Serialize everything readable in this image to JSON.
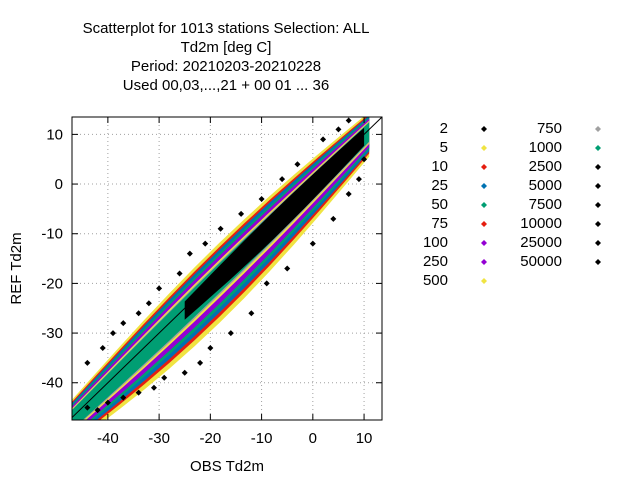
{
  "chart_data": {
    "type": "scatter",
    "title_lines": [
      "Scatterplot for 1013 stations Selection: ALL",
      "Td2m [deg C]",
      "Period: 20210203-20210228",
      "Used  00,03,...,21  + 00 01 ... 36"
    ],
    "xlabel": "OBS Td2m",
    "ylabel": "REF Td2m",
    "xlim": [
      -47,
      13.5
    ],
    "ylim": [
      -47.5,
      13.5
    ],
    "x_ticks": [
      -40,
      -30,
      -20,
      -10,
      0,
      10
    ],
    "y_ticks": [
      -40,
      -30,
      -20,
      -10,
      0,
      10
    ],
    "x_tick_labels": [
      "-40",
      "-30",
      "-20",
      "-10",
      "0",
      "10"
    ],
    "y_tick_labels": [
      "-40",
      "-30",
      "-20",
      "-10",
      "0",
      "10"
    ],
    "grid": true,
    "diagonal": true,
    "legend_position": "right",
    "legend": [
      {
        "label": "2",
        "color": "#000000"
      },
      {
        "label": "5",
        "color": "#f0e442"
      },
      {
        "label": "10",
        "color": "#e51e10"
      },
      {
        "label": "25",
        "color": "#0072b2"
      },
      {
        "label": "50",
        "color": "#009e73"
      },
      {
        "label": "75",
        "color": "#e51e10"
      },
      {
        "label": "100",
        "color": "#9400d3"
      },
      {
        "label": "250",
        "color": "#9400d3"
      },
      {
        "label": "500",
        "color": "#f0e442"
      },
      {
        "label": "750",
        "color": "#a0a0a0"
      },
      {
        "label": "1000",
        "color": "#009e73"
      },
      {
        "label": "2500",
        "color": "#000000"
      },
      {
        "label": "5000",
        "color": "#000000"
      },
      {
        "label": "7500",
        "color": "#000000"
      },
      {
        "label": "10000",
        "color": "#000000"
      },
      {
        "label": "25000",
        "color": "#000000"
      },
      {
        "label": "50000",
        "color": "#000000"
      }
    ],
    "density_bands": [
      {
        "color": "#f0e442",
        "halfwidth": 6.2
      },
      {
        "color": "#e51e10",
        "halfwidth": 5.3
      },
      {
        "color": "#0072b2",
        "halfwidth": 4.7
      },
      {
        "color": "#009e73",
        "halfwidth": 4.0
      },
      {
        "color": "#9400d3",
        "halfwidth": 3.4
      },
      {
        "color": "#f0e442",
        "halfwidth": 2.5
      },
      {
        "color": "#a0a0a0",
        "halfwidth": 2.1
      },
      {
        "color": "#009e73",
        "halfwidth": 1.8
      },
      {
        "color": "#000000",
        "halfwidth": 1.6
      }
    ],
    "core_region": {
      "x_from": -25,
      "x_to": 10
    },
    "outliers": [
      [
        -44,
        -36
      ],
      [
        -41,
        -33
      ],
      [
        -39,
        -30
      ],
      [
        -37,
        -28
      ],
      [
        -34,
        -26
      ],
      [
        -32,
        -24
      ],
      [
        -30,
        -21
      ],
      [
        -26,
        -18
      ],
      [
        -24,
        -14
      ],
      [
        -21,
        -12
      ],
      [
        -18,
        -9
      ],
      [
        -14,
        -6
      ],
      [
        -10,
        -3
      ],
      [
        -6,
        1
      ],
      [
        -3,
        4
      ],
      [
        2,
        9
      ],
      [
        5,
        11
      ],
      [
        7,
        12.8
      ],
      [
        -44,
        -45
      ],
      [
        -42,
        -45.5
      ],
      [
        -40,
        -44
      ],
      [
        -37,
        -43
      ],
      [
        -34,
        -42
      ],
      [
        -31,
        -41
      ],
      [
        -29,
        -39
      ],
      [
        -25,
        -38
      ],
      [
        -22,
        -36
      ],
      [
        -20,
        -33
      ],
      [
        -16,
        -30
      ],
      [
        -12,
        -26
      ],
      [
        -9,
        -20
      ],
      [
        -5,
        -17
      ],
      [
        0,
        -12
      ],
      [
        4,
        -7
      ],
      [
        7,
        -2
      ],
      [
        9,
        1
      ],
      [
        10,
        5
      ]
    ]
  }
}
